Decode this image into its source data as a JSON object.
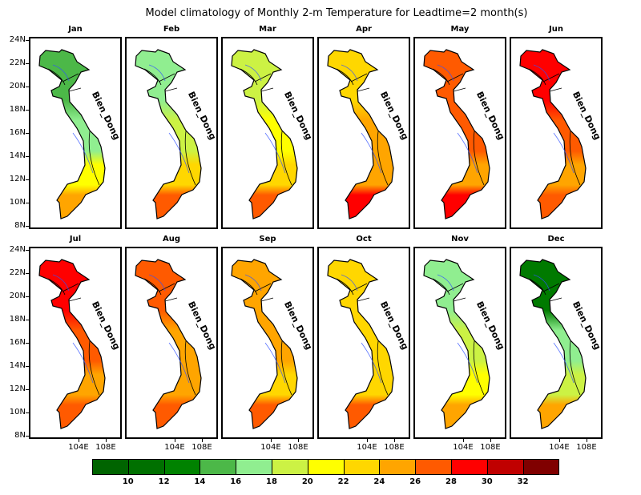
{
  "title": "Model climatology of Monthly 2-m Temperature for Leadtime=2 month(s)",
  "sea_label": "Bien_Dong",
  "lat_labels": [
    "24N",
    "22N",
    "20N",
    "18N",
    "16N",
    "14N",
    "12N",
    "10N",
    "8N"
  ],
  "lon_labels": [
    "104E",
    "108E"
  ],
  "panels": [
    {
      "month": "Jan",
      "colors": [
        "#4cb848",
        "#90ee90",
        "#ffff00",
        "#ffa500"
      ]
    },
    {
      "month": "Feb",
      "colors": [
        "#90ee90",
        "#ccf244",
        "#ffd700",
        "#ff5a00"
      ]
    },
    {
      "month": "Mar",
      "colors": [
        "#ccf244",
        "#ffff00",
        "#ffd700",
        "#ff5a00"
      ]
    },
    {
      "month": "Apr",
      "colors": [
        "#ffd700",
        "#ffa500",
        "#ffa500",
        "#ff0000"
      ]
    },
    {
      "month": "May",
      "colors": [
        "#ff5a00",
        "#ff5a00",
        "#ffa500",
        "#ff0000"
      ]
    },
    {
      "month": "Jun",
      "colors": [
        "#ff0000",
        "#ff5a00",
        "#ffa500",
        "#ff5a00"
      ]
    },
    {
      "month": "Jul",
      "colors": [
        "#ff0000",
        "#ff5a00",
        "#ffa500",
        "#ff5a00"
      ]
    },
    {
      "month": "Aug",
      "colors": [
        "#ff5a00",
        "#ffa500",
        "#ffa500",
        "#ff5a00"
      ]
    },
    {
      "month": "Sep",
      "colors": [
        "#ffa500",
        "#ffa500",
        "#ffd700",
        "#ff5a00"
      ]
    },
    {
      "month": "Oct",
      "colors": [
        "#ffd700",
        "#ffd700",
        "#ffd700",
        "#ff5a00"
      ]
    },
    {
      "month": "Nov",
      "colors": [
        "#90ee90",
        "#ccf244",
        "#ffff00",
        "#ffa500"
      ]
    },
    {
      "month": "Dec",
      "colors": [
        "#007a00",
        "#90ee90",
        "#ccf244",
        "#ffa500"
      ]
    }
  ],
  "colorbar": {
    "colors": [
      "#006400",
      "#007000",
      "#008200",
      "#4cb848",
      "#90ee90",
      "#ccf244",
      "#ffff00",
      "#ffd700",
      "#ffa500",
      "#ff5a00",
      "#ff0000",
      "#c00000",
      "#800000"
    ],
    "labels": [
      "10",
      "12",
      "14",
      "16",
      "18",
      "20",
      "22",
      "24",
      "26",
      "28",
      "30",
      "32"
    ]
  }
}
